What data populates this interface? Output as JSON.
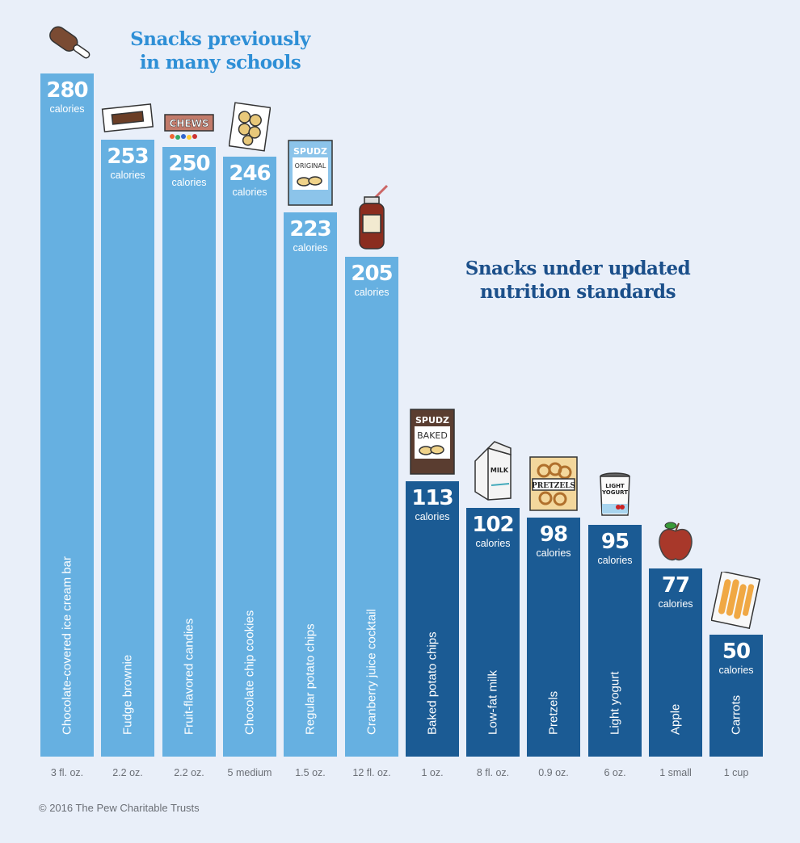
{
  "chart_data": {
    "type": "bar",
    "title": "",
    "xlabel": "",
    "ylabel": "calories",
    "ylim": [
      0,
      280
    ],
    "grid": false,
    "unit_label": "calories",
    "groups": [
      {
        "name": "Snacks previously in many schools",
        "color": "#66b0e1",
        "title_color": "#2e8fd6"
      },
      {
        "name": "Snacks under updated nutrition standards",
        "color": "#1b5b94",
        "title_color": "#1b4f8a"
      }
    ],
    "categories": [
      "Chocolate-covered ice cream bar",
      "Fudge brownie",
      "Fruit-flavored candies",
      "Chocolate chip cookies",
      "Regular potato chips",
      "Cranberry juice cocktail",
      "Baked potato chips",
      "Low-fat milk",
      "Pretzels",
      "Light yogurt",
      "Apple",
      "Carrots"
    ],
    "values": [
      280,
      253,
      250,
      246,
      223,
      205,
      113,
      102,
      98,
      95,
      77,
      50
    ],
    "servings": [
      "3 fl. oz.",
      "2.2 oz.",
      "2.2 oz.",
      "5 medium",
      "1.5 oz.",
      "12 fl. oz.",
      "1 oz.",
      "8 fl. oz.",
      "0.9 oz.",
      "6 oz.",
      "1 small",
      "1 cup"
    ],
    "group_index": [
      0,
      0,
      0,
      0,
      0,
      0,
      1,
      1,
      1,
      1,
      1,
      1
    ],
    "icons": [
      "ice-cream-bar-icon",
      "brownie-icon",
      "chews-candy-icon",
      "cookies-bag-icon",
      "spudz-original-chips-icon",
      "cranberry-juice-bottle-icon",
      "spudz-baked-chips-icon",
      "milk-carton-icon",
      "pretzels-bag-icon",
      "light-yogurt-icon",
      "apple-icon",
      "carrots-bag-icon"
    ],
    "icon_texts": {
      "chews": "CHEWS",
      "spudz": "SPUDZ",
      "original": "ORIGINAL",
      "baked": "BAKED",
      "milk": "MILK",
      "pretzels": "PRETZELS",
      "yogurt1": "LIGHT",
      "yogurt2": "YOGURT"
    }
  },
  "titles": {
    "previous_line1": "Snacks previously",
    "previous_line2": "in many schools",
    "updated_line1": "Snacks under updated",
    "updated_line2": "nutrition standards"
  },
  "footer": "© 2016 The Pew Charitable Trusts"
}
